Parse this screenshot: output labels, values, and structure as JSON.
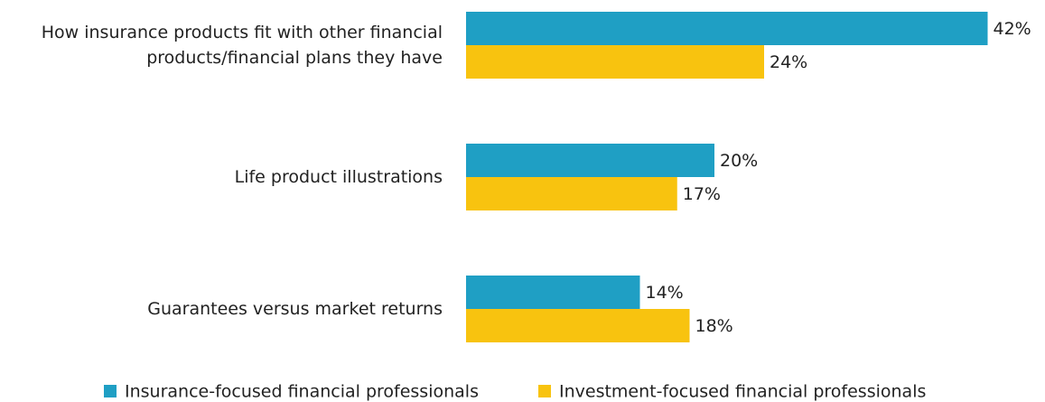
{
  "chart_data": {
    "type": "bar",
    "orientation": "horizontal",
    "categories": [
      "How insurance products fit with other financial products/financial plans they have",
      "Life product illustrations",
      "Guarantees versus market returns"
    ],
    "series": [
      {
        "name": "Insurance-focused financial professionals",
        "color": "#1f9fc4",
        "values": [
          42,
          20,
          14
        ],
        "value_labels": [
          "42%",
          "20%",
          "14%"
        ]
      },
      {
        "name": "Investment-focused financial professionals",
        "color": "#f8c30f",
        "values": [
          24,
          17,
          18
        ],
        "value_labels": [
          "24%",
          "17%",
          "18%"
        ]
      }
    ],
    "legend": "bottom"
  }
}
